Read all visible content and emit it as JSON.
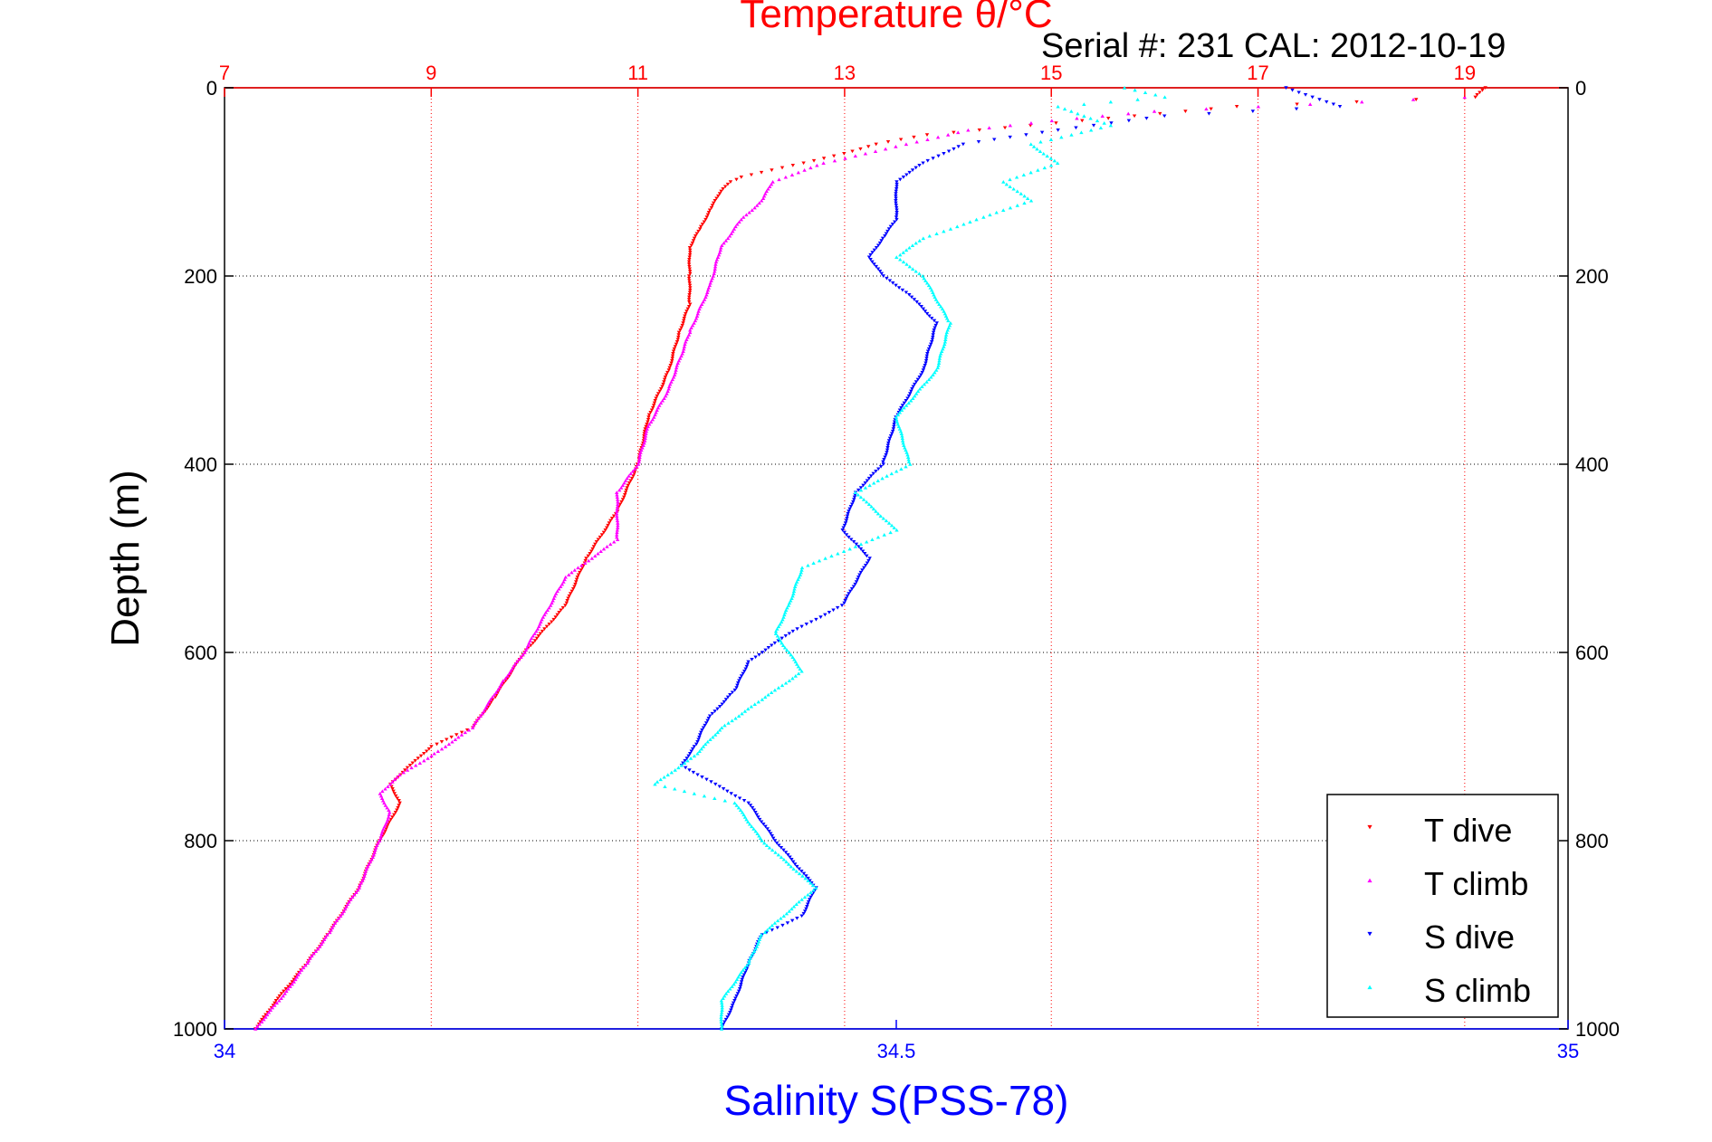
{
  "chart_data": {
    "type": "scatter",
    "title": "Temperature θ/°C",
    "subtitle": "Serial #: 231  CAL: 2012-10-19",
    "xlabel": "Salinity S(PSS-78)",
    "ylabel": "Depth (m)",
    "top_axis": {
      "ticks": [
        "7",
        "9",
        "11",
        "13",
        "15",
        "17",
        "19"
      ],
      "range": [
        7,
        20
      ],
      "color": "#ff0000"
    },
    "bottom_axis": {
      "ticks": [
        "34",
        "34.5",
        "35"
      ],
      "range": [
        34,
        35
      ],
      "color": "#0000ff"
    },
    "y_axis": {
      "ticks": [
        "0",
        "200",
        "400",
        "600",
        "800",
        "1000"
      ],
      "range": [
        0,
        1000
      ],
      "reversed": true
    },
    "grid": true,
    "legend_position": "bottom-right",
    "series": [
      {
        "name": "T dive",
        "axis": "temperature",
        "color": "#ff0000",
        "marker": "triangle-down",
        "points": [
          [
            19.2,
            0
          ],
          [
            19.1,
            10
          ],
          [
            16.8,
            20
          ],
          [
            15.8,
            30
          ],
          [
            14.8,
            40
          ],
          [
            13.8,
            50
          ],
          [
            13.3,
            60
          ],
          [
            13.0,
            70
          ],
          [
            12.6,
            80
          ],
          [
            12.0,
            95
          ],
          [
            11.9,
            100
          ],
          [
            11.8,
            110
          ],
          [
            11.7,
            130
          ],
          [
            11.6,
            150
          ],
          [
            11.5,
            170
          ],
          [
            11.5,
            200
          ],
          [
            11.5,
            230
          ],
          [
            11.4,
            260
          ],
          [
            11.3,
            300
          ],
          [
            11.1,
            350
          ],
          [
            11.0,
            400
          ],
          [
            10.8,
            450
          ],
          [
            10.5,
            500
          ],
          [
            10.3,
            550
          ],
          [
            9.9,
            600
          ],
          [
            9.6,
            650
          ],
          [
            9.4,
            680
          ],
          [
            9.0,
            700
          ],
          [
            8.8,
            720
          ],
          [
            8.6,
            740
          ],
          [
            8.7,
            760
          ],
          [
            8.5,
            800
          ],
          [
            8.3,
            850
          ],
          [
            8.0,
            900
          ],
          [
            7.8,
            930
          ],
          [
            7.5,
            970
          ],
          [
            7.3,
            1000
          ]
        ]
      },
      {
        "name": "T climb",
        "axis": "temperature",
        "color": "#ff00ff",
        "marker": "triangle-up",
        "points": [
          [
            19.0,
            10
          ],
          [
            16.0,
            25
          ],
          [
            15.0,
            35
          ],
          [
            14.2,
            45
          ],
          [
            13.8,
            55
          ],
          [
            13.2,
            70
          ],
          [
            12.8,
            80
          ],
          [
            12.3,
            100
          ],
          [
            12.2,
            120
          ],
          [
            12.0,
            140
          ],
          [
            11.8,
            170
          ],
          [
            11.7,
            210
          ],
          [
            11.5,
            260
          ],
          [
            11.3,
            320
          ],
          [
            11.1,
            360
          ],
          [
            11.0,
            400
          ],
          [
            10.8,
            430
          ],
          [
            10.8,
            480
          ],
          [
            10.3,
            520
          ],
          [
            10.1,
            560
          ],
          [
            9.9,
            600
          ],
          [
            9.7,
            630
          ],
          [
            9.4,
            680
          ],
          [
            9.0,
            710
          ],
          [
            8.7,
            730
          ],
          [
            8.5,
            750
          ],
          [
            8.6,
            770
          ],
          [
            8.5,
            800
          ],
          [
            8.3,
            850
          ],
          [
            8.0,
            900
          ],
          [
            7.8,
            930
          ],
          [
            7.6,
            960
          ],
          [
            7.3,
            1000
          ]
        ]
      },
      {
        "name": "S dive",
        "axis": "salinity",
        "color": "#0000ff",
        "marker": "triangle-down",
        "points": [
          [
            34.79,
            0
          ],
          [
            34.83,
            20
          ],
          [
            34.7,
            30
          ],
          [
            34.62,
            45
          ],
          [
            34.55,
            60
          ],
          [
            34.52,
            80
          ],
          [
            34.5,
            100
          ],
          [
            34.5,
            120
          ],
          [
            34.5,
            140
          ],
          [
            34.49,
            160
          ],
          [
            34.48,
            180
          ],
          [
            34.49,
            200
          ],
          [
            34.51,
            220
          ],
          [
            34.53,
            250
          ],
          [
            34.52,
            300
          ],
          [
            34.5,
            350
          ],
          [
            34.49,
            400
          ],
          [
            34.47,
            430
          ],
          [
            34.46,
            470
          ],
          [
            34.48,
            500
          ],
          [
            34.46,
            550
          ],
          [
            34.42,
            580
          ],
          [
            34.39,
            610
          ],
          [
            34.38,
            640
          ],
          [
            34.36,
            670
          ],
          [
            34.35,
            700
          ],
          [
            34.34,
            720
          ],
          [
            34.39,
            760
          ],
          [
            34.41,
            800
          ],
          [
            34.44,
            850
          ],
          [
            34.43,
            880
          ],
          [
            34.4,
            900
          ],
          [
            34.39,
            930
          ],
          [
            34.38,
            970
          ],
          [
            34.37,
            1000
          ]
        ]
      },
      {
        "name": "S climb",
        "axis": "salinity",
        "color": "#00ffff",
        "marker": "triangle-up",
        "points": [
          [
            34.67,
            0
          ],
          [
            34.7,
            10
          ],
          [
            34.62,
            20
          ],
          [
            34.66,
            40
          ],
          [
            34.6,
            60
          ],
          [
            34.62,
            80
          ],
          [
            34.58,
            100
          ],
          [
            34.6,
            120
          ],
          [
            34.56,
            140
          ],
          [
            34.52,
            160
          ],
          [
            34.5,
            180
          ],
          [
            34.52,
            200
          ],
          [
            34.54,
            250
          ],
          [
            34.53,
            300
          ],
          [
            34.5,
            350
          ],
          [
            34.51,
            400
          ],
          [
            34.47,
            430
          ],
          [
            34.5,
            470
          ],
          [
            34.43,
            510
          ],
          [
            34.42,
            550
          ],
          [
            34.41,
            580
          ],
          [
            34.43,
            620
          ],
          [
            34.4,
            650
          ],
          [
            34.37,
            680
          ],
          [
            34.35,
            710
          ],
          [
            34.32,
            740
          ],
          [
            34.38,
            760
          ],
          [
            34.4,
            800
          ],
          [
            34.44,
            850
          ],
          [
            34.4,
            900
          ],
          [
            34.39,
            930
          ],
          [
            34.37,
            970
          ],
          [
            34.37,
            1000
          ]
        ]
      }
    ]
  }
}
